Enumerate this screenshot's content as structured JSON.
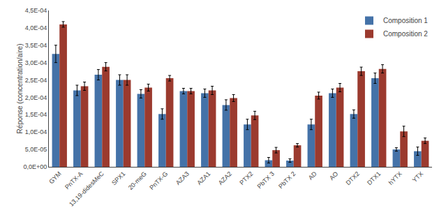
{
  "chart_data": {
    "type": "bar",
    "ylabel": "Réponse (concentration/aire)",
    "categories": [
      "GYM",
      "PnTX-A",
      "13,19-didesMeC",
      "SPX1",
      "20-meG",
      "PnTX-G",
      "AZA3",
      "AZA1",
      "AZA2",
      "PTX2",
      "PbTX 3",
      "PbTX 2",
      "AD",
      "AO",
      "DTX2",
      "DTX1",
      "hYTX",
      "YTX"
    ],
    "series": [
      {
        "name": "Composition 1",
        "color": "#4472A8",
        "values": [
          0.000325,
          0.00022,
          0.000265,
          0.00025,
          0.00021,
          0.000152,
          0.000218,
          0.000212,
          0.000178,
          0.000122,
          1.9e-05,
          1.8e-05,
          0.000122,
          0.000212,
          0.000152,
          0.000255,
          5e-05,
          4.5e-05
        ],
        "errors": [
          2.5e-05,
          1.5e-05,
          1.5e-05,
          1.5e-05,
          1.2e-05,
          1.5e-05,
          8e-06,
          1.2e-05,
          1.5e-05,
          1.5e-05,
          8e-06,
          5e-06,
          1.5e-05,
          1.2e-05,
          1.2e-05,
          1.5e-05,
          5e-06,
          1.2e-05
        ]
      },
      {
        "name": "Composition 2",
        "color": "#9B3A2E",
        "values": [
          0.00041,
          0.000232,
          0.000288,
          0.00025,
          0.000228,
          0.000255,
          0.000218,
          0.00022,
          0.000198,
          0.000148,
          4.8e-05,
          6.2e-05,
          0.000205,
          0.000228,
          0.000275,
          0.000282,
          0.000102,
          7.5e-05
        ],
        "errors": [
          8e-06,
          1.2e-05,
          1.2e-05,
          1.5e-05,
          1e-05,
          8e-06,
          8e-06,
          1.2e-05,
          1e-05,
          1.2e-05,
          8e-06,
          5e-06,
          1e-05,
          1.2e-05,
          1.2e-05,
          1.2e-05,
          1.5e-05,
          8e-06
        ]
      }
    ],
    "ylim": [
      0,
      0.00045
    ],
    "yticks": [
      {
        "value": 0,
        "label": "0,0E+00"
      },
      {
        "value": 5e-05,
        "label": "5,0E-05"
      },
      {
        "value": 0.0001,
        "label": "1,0E-04"
      },
      {
        "value": 0.00015,
        "label": "1,5E-04"
      },
      {
        "value": 0.0002,
        "label": "2,0E-04"
      },
      {
        "value": 0.00025,
        "label": "2,5E-04"
      },
      {
        "value": 0.0003,
        "label": "3,0E-04"
      },
      {
        "value": 0.00035,
        "label": "3,5E-04"
      },
      {
        "value": 0.0004,
        "label": "4,0E-04"
      },
      {
        "value": 0.00045,
        "label": "4,5E-04"
      }
    ],
    "legend": "upper right",
    "grid": false
  }
}
